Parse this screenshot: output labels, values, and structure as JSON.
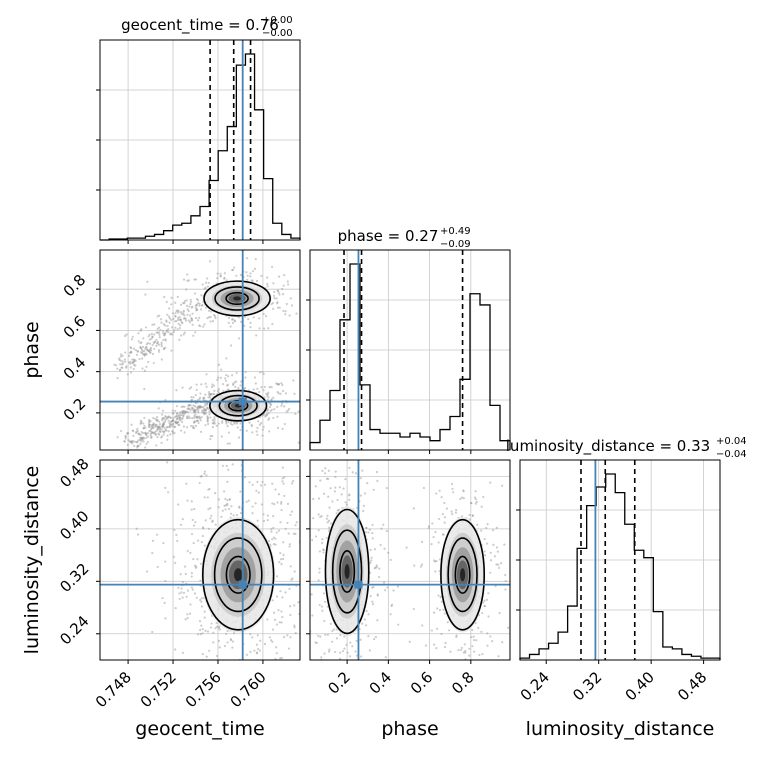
{
  "chart_data": {
    "type": "scatter",
    "kind": "corner plot",
    "parameters": [
      {
        "name": "geocent_time",
        "title_text": "geocent_time = 0.76",
        "sup": "+0.00",
        "sub": "−0.00",
        "axis_label": "geocent_time",
        "range": [
          0.7455,
          0.7633
        ],
        "ticks": [
          0.748,
          0.752,
          0.756,
          0.76
        ],
        "tick_labels": [
          "0.748",
          "0.752",
          "0.756",
          "0.760"
        ],
        "truth": 0.7582,
        "quantiles": [
          0.7553,
          0.7574,
          0.7589
        ],
        "hist_bins": [
          0.0,
          0.005,
          0.005,
          0.01,
          0.01,
          0.02,
          0.03,
          0.05,
          0.08,
          0.09,
          0.13,
          0.18,
          0.32,
          0.48,
          0.61,
          0.94,
          1.0,
          0.7,
          0.33,
          0.09,
          0.03,
          0.01
        ]
      },
      {
        "name": "phase",
        "title_text": "phase = 0.27",
        "sup": "+0.49",
        "sub": "−0.09",
        "axis_label": "phase",
        "range": [
          0.02,
          0.99
        ],
        "ticks": [
          0.2,
          0.4,
          0.6,
          0.8
        ],
        "tick_labels": [
          "0.2",
          "0.4",
          "0.6",
          "0.8"
        ],
        "truth": 0.255,
        "quantiles": [
          0.185,
          0.27,
          0.76
        ],
        "hist_bins": [
          0.04,
          0.16,
          0.32,
          0.7,
          1.0,
          0.35,
          0.11,
          0.09,
          0.09,
          0.07,
          0.09,
          0.07,
          0.05,
          0.11,
          0.18,
          0.38,
          0.84,
          0.78,
          0.24,
          0.05
        ]
      },
      {
        "name": "luminosity_distance",
        "title_text": "luminosity_distance = 0.33",
        "sup": "+0.04",
        "sub": "−0.04",
        "axis_label": "luminosity_distance",
        "range": [
          0.2,
          0.505
        ],
        "ticks": [
          0.24,
          0.32,
          0.4,
          0.48
        ],
        "tick_labels": [
          "0.24",
          "0.32",
          "0.40",
          "0.48"
        ],
        "truth": 0.315,
        "quantiles": [
          0.293,
          0.33,
          0.375
        ],
        "hist_bins": [
          0.01,
          0.03,
          0.06,
          0.09,
          0.15,
          0.29,
          0.6,
          0.83,
          0.93,
          1.0,
          0.9,
          0.73,
          0.59,
          0.55,
          0.26,
          0.07,
          0.06,
          0.03,
          0.02,
          0.01,
          0.01
        ]
      }
    ],
    "pair_density": [
      {
        "x": "geocent_time",
        "y": "phase",
        "modes": [
          {
            "mx": 0.7578,
            "my": 0.235,
            "sx": 0.0012,
            "sy": 0.035,
            "weight": 0.6
          },
          {
            "mx": 0.7577,
            "my": 0.755,
            "sx": 0.0014,
            "sy": 0.04,
            "weight": 0.4
          }
        ]
      },
      {
        "x": "geocent_time",
        "y": "luminosity_distance",
        "modes": [
          {
            "mx": 0.7578,
            "my": 0.33,
            "sx": 0.0015,
            "sy": 0.04,
            "weight": 1.0
          }
        ]
      },
      {
        "x": "phase",
        "y": "luminosity_distance",
        "modes": [
          {
            "mx": 0.2,
            "my": 0.335,
            "sx": 0.05,
            "sy": 0.045,
            "weight": 0.55
          },
          {
            "mx": 0.76,
            "my": 0.33,
            "sx": 0.05,
            "sy": 0.04,
            "weight": 0.45
          }
        ]
      }
    ],
    "grid": true,
    "colors": {
      "hist": "#000000",
      "truth": "#4682b4",
      "quantile": "#000000",
      "samples": "#9a9a9a",
      "contour": "#000000"
    }
  }
}
